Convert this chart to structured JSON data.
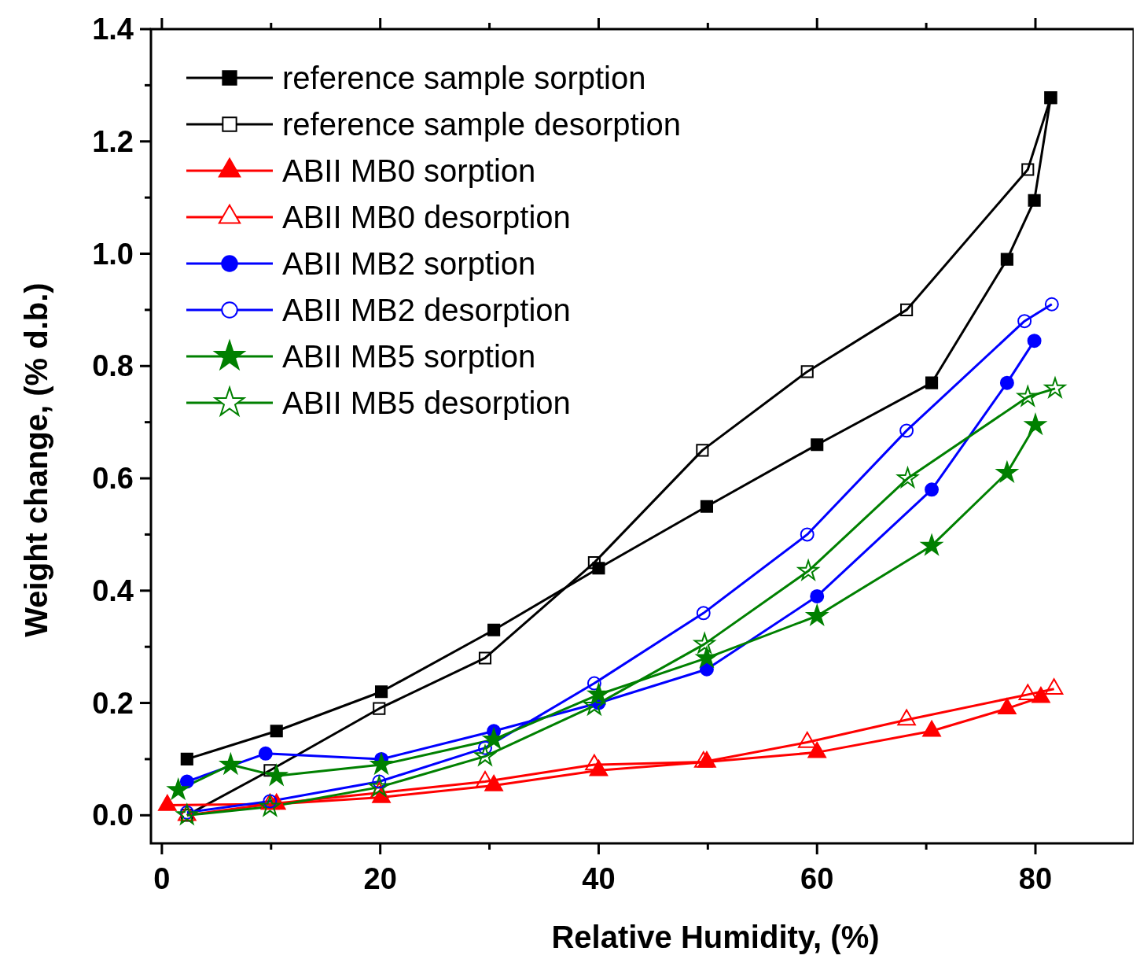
{
  "chart_data": {
    "type": "line",
    "xlabel": "Relative Humidity, (%)",
    "ylabel": "Weight change, (% d.b.)",
    "xlim": [
      -1,
      89
    ],
    "ylim": [
      -0.05,
      1.4
    ],
    "xticks": [
      0,
      {
        "value": 10,
        "label": null
      },
      20,
      {
        "value": 30,
        "label": null
      },
      40,
      {
        "value": 50,
        "label": null
      },
      60,
      {
        "value": 70,
        "label": null
      },
      80
    ],
    "yticks": [
      {
        "value": 0,
        "label": "0.0"
      },
      {
        "value": 0.1,
        "label": null
      },
      {
        "value": 0.2,
        "label": "0.2"
      },
      {
        "value": 0.3,
        "label": null
      },
      {
        "value": 0.4,
        "label": "0.4"
      },
      {
        "value": 0.5,
        "label": null
      },
      {
        "value": 0.6,
        "label": "0.6"
      },
      {
        "value": 0.7,
        "label": null
      },
      {
        "value": 0.8,
        "label": "0.8"
      },
      {
        "value": 0.9,
        "label": null
      },
      {
        "value": 1.0,
        "label": "1.0"
      },
      {
        "value": 1.1,
        "label": null
      },
      {
        "value": 1.2,
        "label": "1.2"
      },
      {
        "value": 1.3,
        "label": null
      },
      {
        "value": 1.4,
        "label": "1.4"
      }
    ],
    "grid": false,
    "legend": "top left",
    "line_style": "solid",
    "series": [
      {
        "name": "reference sample sorption",
        "color": "#000000",
        "marker": "square",
        "x": [
          2.3,
          10.5,
          20.1,
          30.4,
          40,
          49.9,
          60,
          70.5,
          77.4,
          79.9,
          81.4
        ],
        "values": [
          0.1,
          0.15,
          0.22,
          0.33,
          0.44,
          0.55,
          0.66,
          0.77,
          0.99,
          1.095,
          1.278
        ]
      },
      {
        "name": "reference sample desorption",
        "color": "#000000",
        "marker": "square-open",
        "x": [
          81.4,
          79.3,
          68.2,
          59.1,
          49.5,
          39.6,
          29.6,
          19.9,
          9.9,
          2.3
        ],
        "values": [
          1.278,
          1.15,
          0.9,
          0.79,
          0.65,
          0.45,
          0.28,
          0.19,
          0.08,
          0.0
        ]
      },
      {
        "name": "ABII MB0 sorption",
        "color": "#ff0000",
        "marker": "triangle",
        "x": [
          0.5,
          10.5,
          20.1,
          30.4,
          40,
          49.9,
          60,
          70.5,
          77.4,
          80.5
        ],
        "values": [
          0.018,
          0.02,
          0.032,
          0.053,
          0.08,
          0.095,
          0.112,
          0.15,
          0.19,
          0.21
        ]
      },
      {
        "name": "ABII MB0 desorption",
        "color": "#ff0000",
        "marker": "triangle-open",
        "x": [
          81.7,
          79.3,
          68.2,
          59.1,
          49.6,
          39.6,
          29.6,
          19.9,
          9.9,
          2.3
        ],
        "values": [
          0.225,
          0.215,
          0.17,
          0.13,
          0.095,
          0.09,
          0.06,
          0.04,
          0.02,
          0.0
        ]
      },
      {
        "name": "ABII MB2 sorption",
        "color": "#0000ff",
        "marker": "circle",
        "x": [
          2.3,
          9.5,
          20.1,
          30.4,
          40,
          49.9,
          60,
          70.5,
          77.4,
          79.9
        ],
        "values": [
          0.06,
          0.11,
          0.1,
          0.15,
          0.2,
          0.26,
          0.39,
          0.58,
          0.77,
          0.845
        ]
      },
      {
        "name": "ABII MB2 desorption",
        "color": "#0000ff",
        "marker": "circle-open",
        "x": [
          81.5,
          79,
          68.2,
          59.1,
          49.6,
          39.6,
          29.6,
          19.9,
          9.9,
          2.3
        ],
        "values": [
          0.91,
          0.88,
          0.685,
          0.5,
          0.36,
          0.235,
          0.12,
          0.06,
          0.025,
          0.005
        ]
      },
      {
        "name": "ABII MB5 sorption",
        "color": "#008000",
        "marker": "star",
        "x": [
          1.5,
          6.3,
          10.5,
          20.1,
          30.4,
          40,
          49.9,
          60,
          70.5,
          77.4,
          80
        ],
        "values": [
          0.045,
          0.09,
          0.07,
          0.09,
          0.135,
          0.215,
          0.28,
          0.355,
          0.48,
          0.61,
          0.695
        ]
      },
      {
        "name": "ABII MB5 desorption",
        "color": "#008000",
        "marker": "star-open",
        "x": [
          81.8,
          79.3,
          68.3,
          59.2,
          49.7,
          39.6,
          29.6,
          19.9,
          9.9,
          2.3
        ],
        "values": [
          0.76,
          0.745,
          0.6,
          0.435,
          0.305,
          0.195,
          0.105,
          0.05,
          0.015,
          0.0
        ]
      }
    ]
  }
}
